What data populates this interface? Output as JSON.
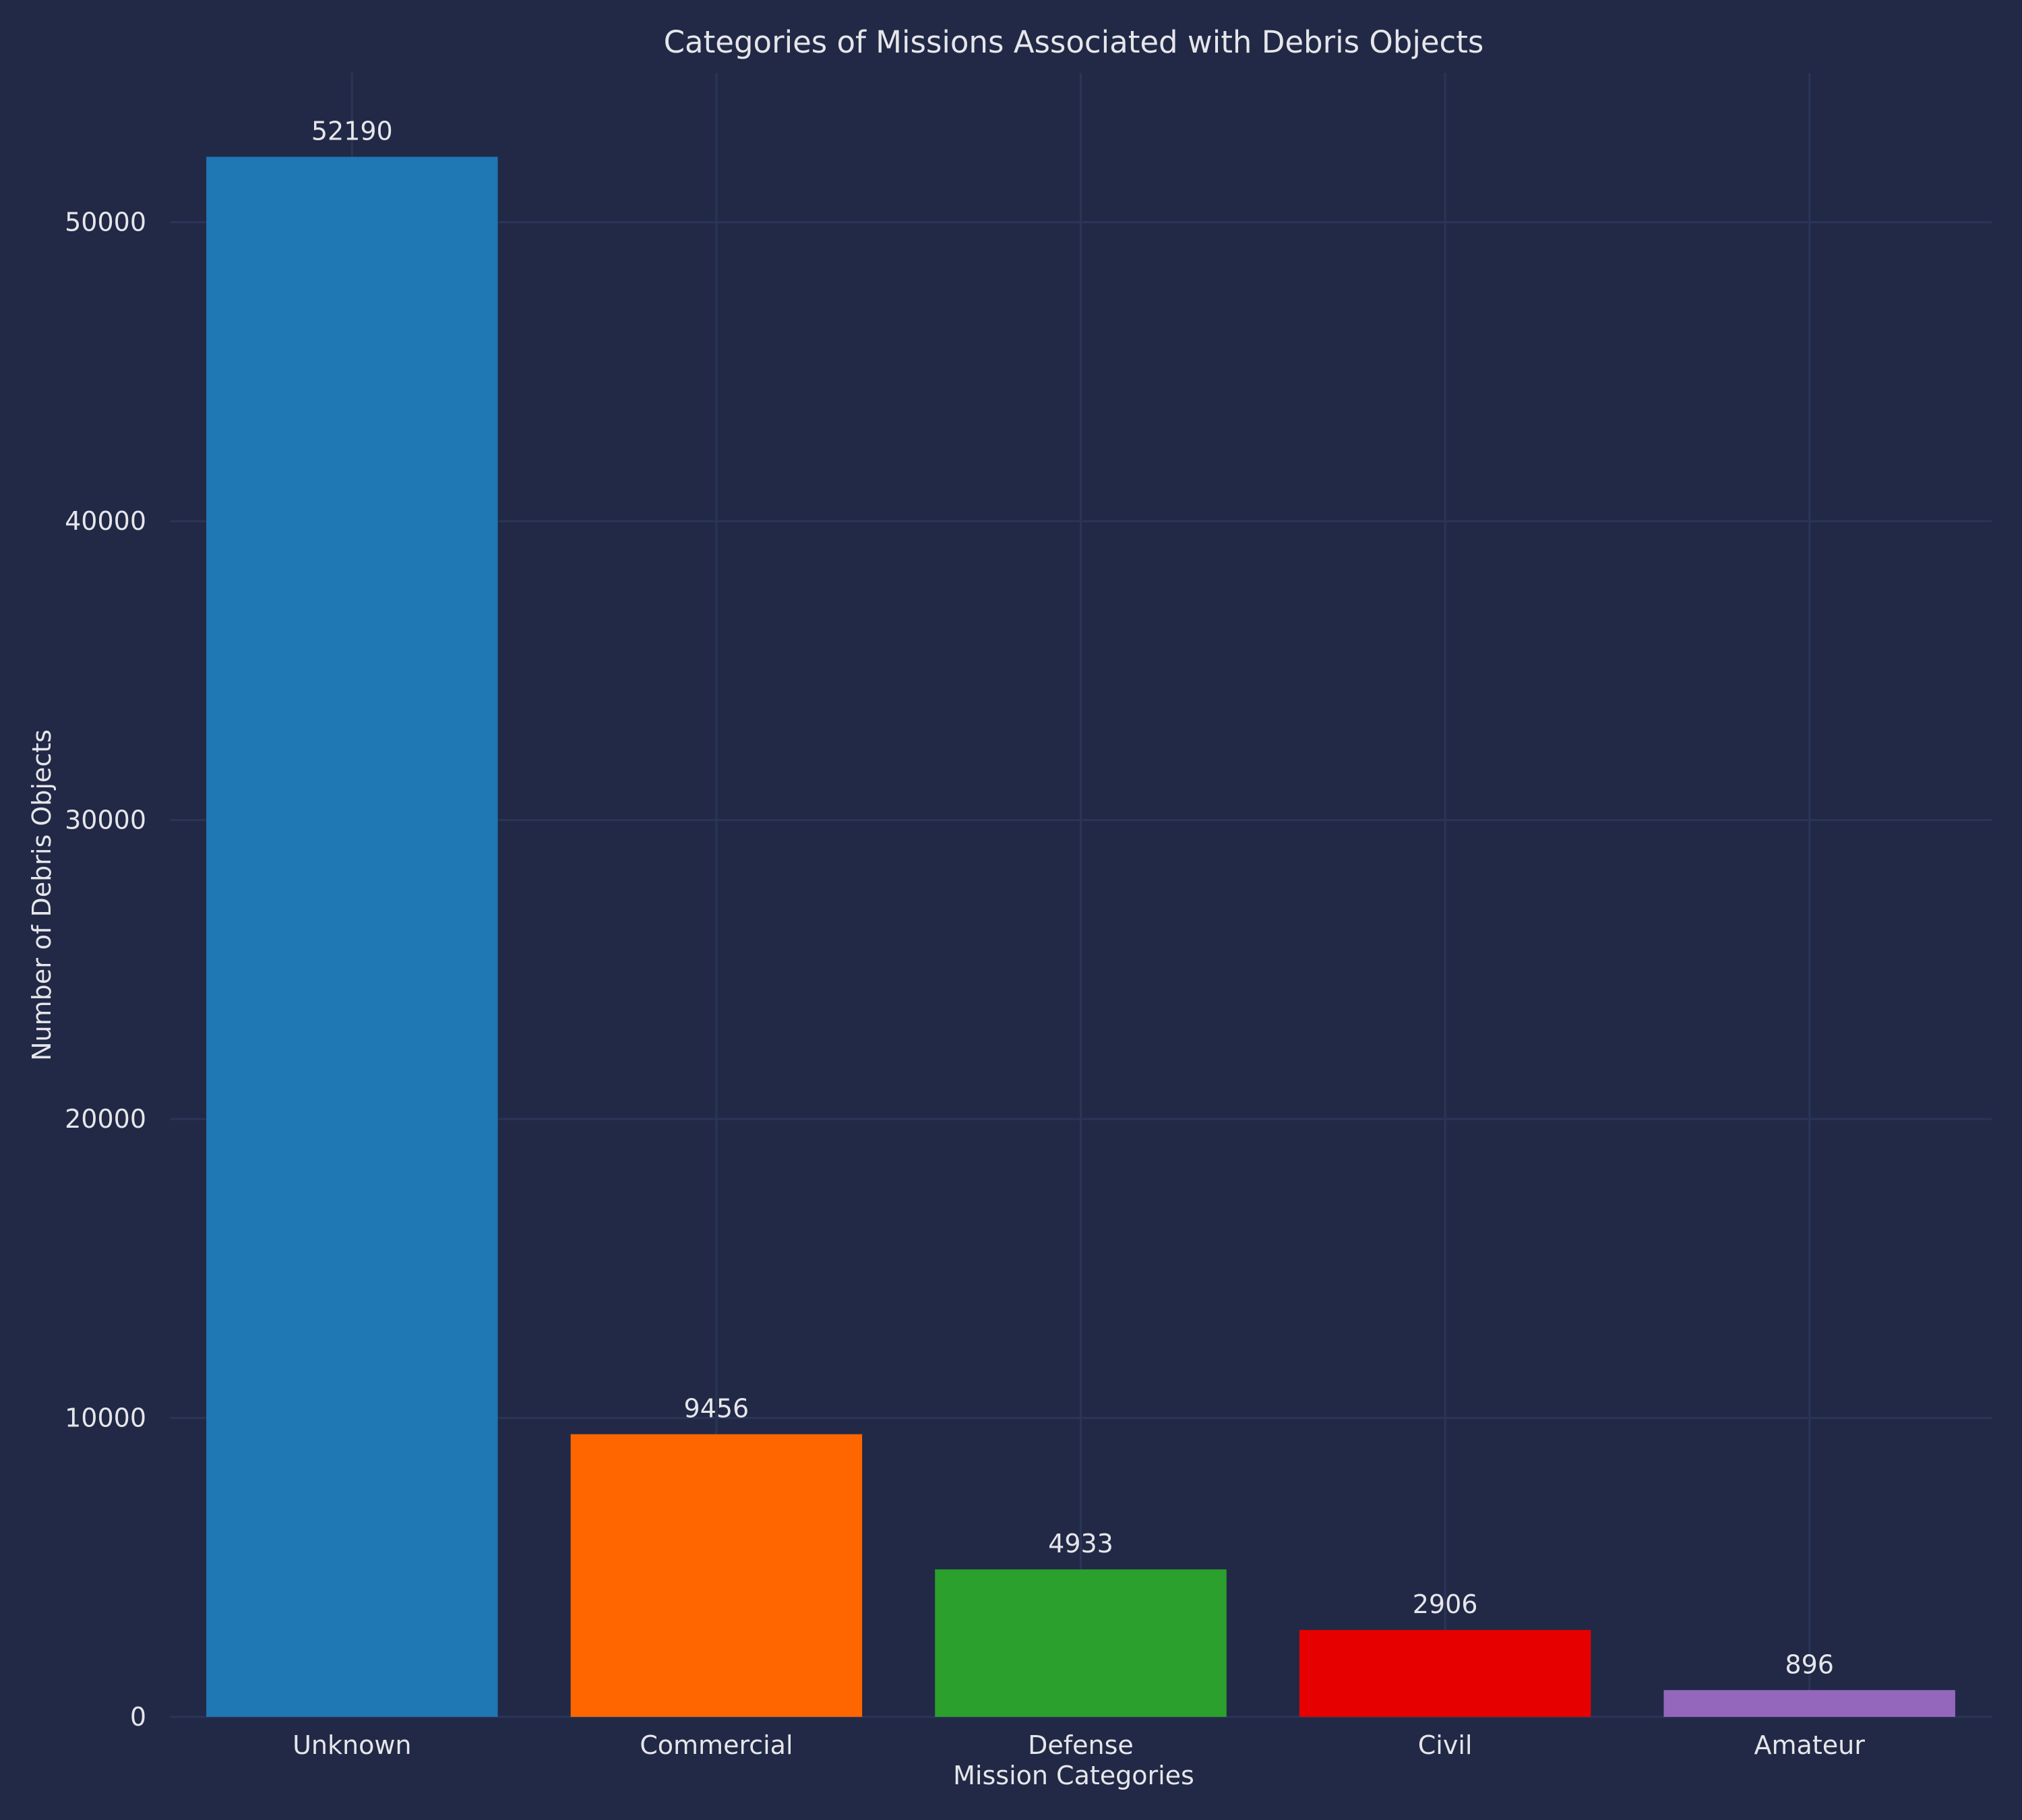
{
  "chart_data": {
    "type": "bar",
    "title": "Categories of Missions Associated with Debris Objects",
    "xlabel": "Mission Categories",
    "ylabel": "Number of Debris Objects",
    "categories": [
      "Unknown",
      "Commercial",
      "Defense",
      "Civil",
      "Amateur"
    ],
    "values": [
      52190,
      9456,
      4933,
      2906,
      896
    ],
    "value_labels": [
      "52190",
      "9456",
      "4933",
      "2906",
      "896"
    ],
    "colors": [
      "#1f77b4",
      "#ff6600",
      "#2ca02c",
      "#e60000",
      "#9467bd"
    ],
    "ylim": [
      0,
      55000
    ],
    "yticks": [
      0,
      10000,
      20000,
      30000,
      40000,
      50000
    ],
    "ytick_labels": [
      "0",
      "10000",
      "20000",
      "30000",
      "40000",
      "50000"
    ],
    "grid": true,
    "legend": "none",
    "background": "#212946"
  }
}
